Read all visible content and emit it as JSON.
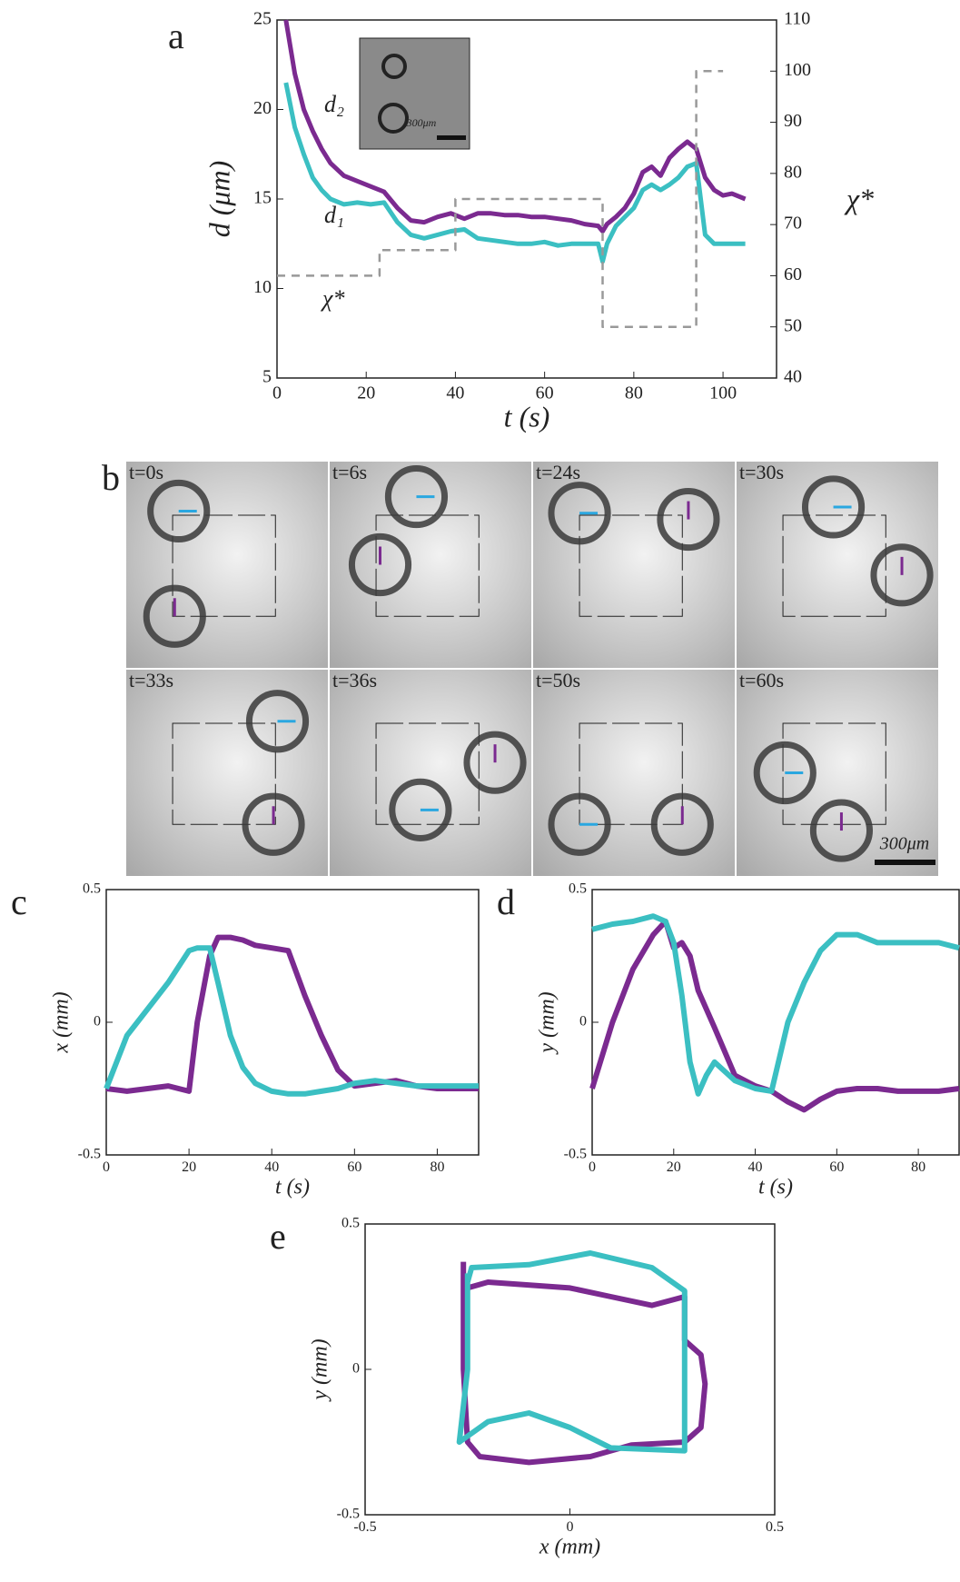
{
  "chart_data": [
    {
      "type": "line",
      "panel_label": "a",
      "xlabel": "t (s)",
      "ylabel": "d (μm)",
      "y2label": "χ*",
      "inset_scale_label": "300μm",
      "xlim": [
        0,
        112
      ],
      "xticks": [
        0,
        20,
        40,
        60,
        80,
        100
      ],
      "ylim": [
        5,
        25
      ],
      "yticks": [
        5,
        10,
        15,
        20,
        25
      ],
      "y2lim": [
        40,
        110
      ],
      "y2ticks": [
        40,
        50,
        60,
        70,
        80,
        90,
        100,
        110
      ],
      "x": [
        2,
        4,
        6,
        8,
        10,
        12,
        15,
        18,
        21,
        24,
        27,
        30,
        33,
        36,
        39,
        42,
        45,
        48,
        51,
        54,
        57,
        60,
        63,
        66,
        69,
        72,
        73,
        74,
        76,
        78,
        80,
        82,
        84,
        86,
        88,
        90,
        92,
        94,
        96,
        98,
        100,
        102,
        105
      ],
      "series": [
        {
          "name": "d₂",
          "color": "#7b2a90",
          "values": [
            25,
            22,
            20,
            18.8,
            17.8,
            17,
            16.3,
            16,
            15.7,
            15.4,
            14.5,
            13.8,
            13.7,
            14,
            14.2,
            13.9,
            14.2,
            14.2,
            14.1,
            14.1,
            14,
            14,
            13.9,
            13.8,
            13.6,
            13.5,
            13.2,
            13.6,
            14,
            14.5,
            15.3,
            16.5,
            16.8,
            16.3,
            17.3,
            17.8,
            18.2,
            17.8,
            16.2,
            15.5,
            15.2,
            15.3,
            15.0
          ]
        },
        {
          "name": "d₁",
          "color": "#3bbfc2",
          "values": [
            21.5,
            19,
            17.5,
            16.2,
            15.5,
            15,
            14.7,
            14.8,
            14.7,
            14.8,
            13.7,
            13,
            12.8,
            13,
            13.2,
            13.3,
            12.8,
            12.7,
            12.6,
            12.5,
            12.5,
            12.6,
            12.4,
            12.5,
            12.5,
            12.5,
            11.5,
            12.5,
            13.5,
            14,
            14.5,
            15.5,
            15.8,
            15.5,
            15.8,
            16.2,
            16.8,
            17,
            13,
            12.5,
            12.5,
            12.5,
            12.5
          ]
        },
        {
          "name": "χ*",
          "color": "#999999",
          "dash": true,
          "axis": "y2",
          "x": [
            0,
            23,
            23,
            40,
            40,
            73,
            73,
            94,
            94,
            100
          ],
          "values": [
            60,
            60,
            65,
            65,
            75,
            75,
            50,
            50,
            100,
            100
          ]
        }
      ]
    },
    {
      "type": "line",
      "panel_label": "c",
      "xlabel": "t (s)",
      "ylabel": "x (mm)",
      "xlim": [
        0,
        90
      ],
      "xticks": [
        0,
        20,
        40,
        60,
        80
      ],
      "ylim": [
        -0.5,
        0.5
      ],
      "yticks": [
        -0.5,
        0,
        0.5
      ],
      "x": [
        0,
        5,
        10,
        15,
        20,
        22,
        25,
        27,
        30,
        33,
        36,
        40,
        44,
        48,
        52,
        56,
        60,
        65,
        70,
        75,
        80,
        85,
        90
      ],
      "series": [
        {
          "color": "#7b2a90",
          "values": [
            -0.25,
            -0.26,
            -0.25,
            -0.24,
            -0.26,
            0,
            0.25,
            0.32,
            0.32,
            0.31,
            0.29,
            0.28,
            0.27,
            0.1,
            -0.05,
            -0.18,
            -0.24,
            -0.23,
            -0.22,
            -0.24,
            -0.25,
            -0.25,
            -0.25
          ]
        },
        {
          "color": "#3bbfc2",
          "values": [
            -0.25,
            -0.05,
            0.05,
            0.15,
            0.27,
            0.28,
            0.28,
            0.15,
            -0.05,
            -0.17,
            -0.23,
            -0.26,
            -0.27,
            -0.27,
            -0.26,
            -0.25,
            -0.23,
            -0.22,
            -0.23,
            -0.24,
            -0.24,
            -0.24,
            -0.24
          ]
        }
      ]
    },
    {
      "type": "line",
      "panel_label": "d",
      "xlabel": "t (s)",
      "ylabel": "y (mm)",
      "xlim": [
        0,
        90
      ],
      "xticks": [
        0,
        20,
        40,
        60,
        80
      ],
      "ylim": [
        -0.5,
        0.5
      ],
      "yticks": [
        -0.5,
        0,
        0.5
      ],
      "x": [
        0,
        5,
        10,
        15,
        18,
        20,
        22,
        24,
        26,
        28,
        30,
        35,
        40,
        44,
        48,
        52,
        56,
        60,
        65,
        70,
        75,
        80,
        85,
        90
      ],
      "series": [
        {
          "color": "#7b2a90",
          "values": [
            -0.25,
            0,
            0.2,
            0.33,
            0.38,
            0.28,
            0.3,
            0.25,
            0.12,
            0.05,
            -0.02,
            -0.2,
            -0.24,
            -0.26,
            -0.3,
            -0.33,
            -0.29,
            -0.26,
            -0.25,
            -0.25,
            -0.26,
            -0.26,
            -0.26,
            -0.25
          ]
        },
        {
          "color": "#3bbfc2",
          "values": [
            0.35,
            0.37,
            0.38,
            0.4,
            0.38,
            0.3,
            0.1,
            -0.15,
            -0.27,
            -0.2,
            -0.15,
            -0.22,
            -0.25,
            -0.26,
            0.0,
            0.15,
            0.27,
            0.33,
            0.33,
            0.3,
            0.3,
            0.3,
            0.3,
            0.28
          ]
        }
      ]
    },
    {
      "type": "line",
      "panel_label": "e",
      "xlabel": "x (mm)",
      "ylabel": "y (mm)",
      "xlim": [
        -0.5,
        0.5
      ],
      "xticks": [
        -0.5,
        0,
        0.5
      ],
      "ylim": [
        -0.5,
        0.5
      ],
      "yticks": [
        -0.5,
        0,
        0.5
      ],
      "series": [
        {
          "color": "#7b2a90",
          "x": [
            -0.26,
            -0.26,
            -0.25,
            -0.22,
            -0.1,
            0.05,
            0.15,
            0.28,
            0.32,
            0.33,
            0.32,
            0.28,
            0.28,
            0.2,
            0.1,
            0,
            -0.2,
            -0.25
          ],
          "values": [
            0.37,
            0.0,
            -0.25,
            -0.3,
            -0.32,
            -0.3,
            -0.26,
            -0.25,
            -0.2,
            -0.05,
            0.05,
            0.1,
            0.25,
            0.22,
            0.25,
            0.28,
            0.3,
            0.28
          ]
        },
        {
          "color": "#3bbfc2",
          "x": [
            -0.25,
            -0.25,
            -0.27,
            -0.2,
            -0.1,
            0,
            0.1,
            0.28,
            0.28,
            0.28,
            0.2,
            0.05,
            -0.1,
            -0.24,
            -0.25
          ],
          "values": [
            0.33,
            0.0,
            -0.25,
            -0.18,
            -0.15,
            -0.2,
            -0.27,
            -0.28,
            0,
            0.27,
            0.35,
            0.4,
            0.36,
            0.35,
            0.3
          ]
        }
      ]
    }
  ],
  "panel_b": {
    "label": "b",
    "frames": [
      "t=0s",
      "t=6s",
      "t=24s",
      "t=30s",
      "t=33s",
      "t=36s",
      "t=50s",
      "t=60s"
    ],
    "scale_bar": "300μm"
  }
}
